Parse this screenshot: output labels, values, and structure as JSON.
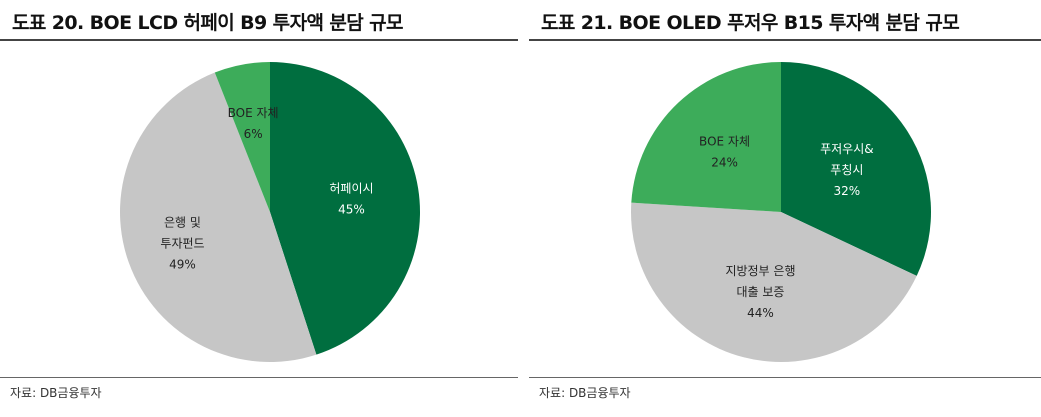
{
  "chart_data": [
    {
      "type": "pie",
      "title": "도표 20. BOE LCD 허페이 B9 투자액 분담 규모",
      "slices": [
        {
          "label": "허페이시",
          "value": 45,
          "value_text": "45%",
          "color": "#006e3f"
        },
        {
          "label": "은행 및 투자펀드",
          "label_lines": [
            "은행 및",
            "투자펀드"
          ],
          "value": 49,
          "value_text": "49%",
          "color": "#c6c6c6"
        },
        {
          "label": "BOE 자체",
          "value": 6,
          "value_text": "6%",
          "color": "#3dac5a"
        }
      ],
      "source": "자료: DB금융투자"
    },
    {
      "type": "pie",
      "title": "도표 21. BOE OLED 푸저우 B15 투자액 분담 규모",
      "slices": [
        {
          "label": "푸저우시& 푸칭시",
          "label_lines": [
            "푸저우시&",
            "푸칭시"
          ],
          "value": 32,
          "value_text": "32%",
          "color": "#006e3f"
        },
        {
          "label": "지방정부 은행 대출 보증",
          "label_lines": [
            "지방정부 은행",
            "대출 보증"
          ],
          "value": 44,
          "value_text": "44%",
          "color": "#c6c6c6"
        },
        {
          "label": "BOE 자체",
          "value": 24,
          "value_text": "24%",
          "color": "#3dac5a"
        }
      ],
      "source": "자료: DB금융투자"
    }
  ]
}
